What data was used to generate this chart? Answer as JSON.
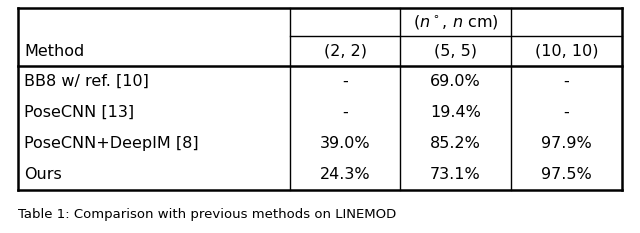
{
  "title_row_text": "($n^\\circ$, $n$ cm)",
  "header_row": [
    "Method",
    "(2, 2)",
    "(5, 5)",
    "(10, 10)"
  ],
  "rows": [
    [
      "BB8 w/ ref. [10]",
      "-",
      "69.0%",
      "-"
    ],
    [
      "PoseCNN [13]",
      "-",
      "19.4%",
      "-"
    ],
    [
      "PoseCNN+DeepIM [8]",
      "39.0%",
      "85.2%",
      "97.9%"
    ],
    [
      "Ours",
      "24.3%",
      "73.1%",
      "97.5%"
    ]
  ],
  "fig_width": 6.4,
  "fig_height": 2.33,
  "background": "#ffffff",
  "caption": "Table 1: Comparison with previous methods on LINEMOD",
  "fontsize": 11.5,
  "caption_fontsize": 9.5
}
